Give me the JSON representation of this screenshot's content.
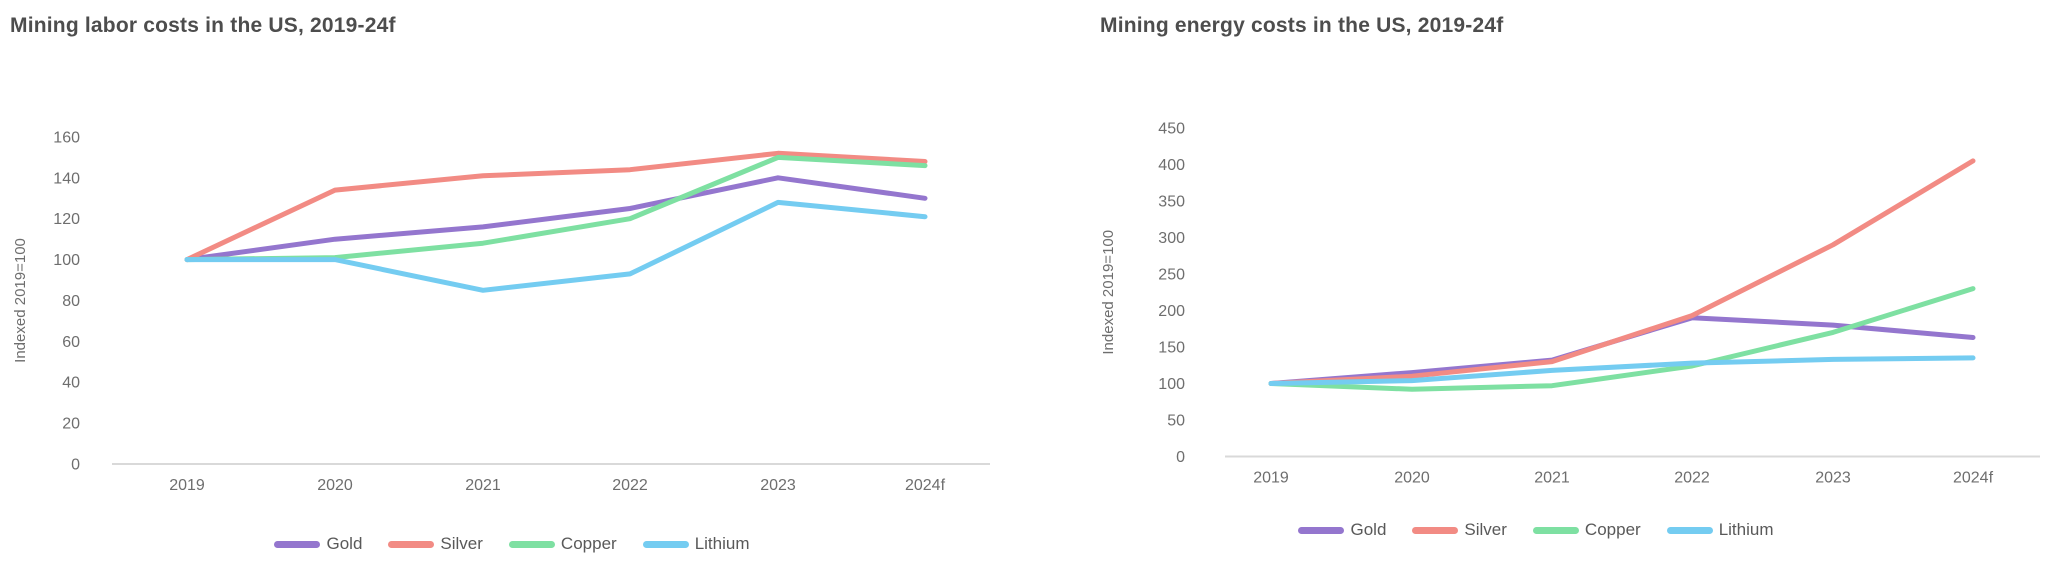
{
  "legend_labels": [
    "Gold",
    "Silver",
    "Copper",
    "Lithium"
  ],
  "colors": {
    "gold": "#9476ce",
    "silver": "#f28b84",
    "copper": "#7ee0a2",
    "lithium": "#74ccf1",
    "axis_line": "#d9d9d9",
    "tick_text": "#6e6e6e",
    "title_text": "#4d4d4d",
    "legend_text": "#595959"
  },
  "chart_data": [
    {
      "type": "line",
      "title": "Mining labor costs in the US, 2019-24f",
      "xlabel": "",
      "ylabel": "Indexed 2019=100",
      "categories": [
        "2019",
        "2020",
        "2021",
        "2022",
        "2023",
        "2024f"
      ],
      "series": [
        {
          "name": "Gold",
          "color": "#9476ce",
          "values": [
            100,
            110,
            116,
            125,
            140,
            130
          ]
        },
        {
          "name": "Silver",
          "color": "#f28b84",
          "values": [
            100,
            134,
            141,
            144,
            152,
            148
          ]
        },
        {
          "name": "Copper",
          "color": "#7ee0a2",
          "values": [
            100,
            101,
            108,
            120,
            150,
            146
          ]
        },
        {
          "name": "Lithium",
          "color": "#74ccf1",
          "values": [
            100,
            100,
            85,
            93,
            128,
            121
          ]
        }
      ],
      "ylim": [
        0,
        160
      ],
      "y_ticks": [
        0,
        20,
        40,
        60,
        80,
        100,
        120,
        140,
        160
      ],
      "grid": false,
      "legend_position": "bottom"
    },
    {
      "type": "line",
      "title": "Mining energy costs in the US, 2019-24f",
      "xlabel": "",
      "ylabel": "Indexed 2019=100",
      "categories": [
        "2019",
        "2020",
        "2021",
        "2022",
        "2023",
        "2024f"
      ],
      "series": [
        {
          "name": "Gold",
          "color": "#9476ce",
          "values": [
            100,
            115,
            132,
            190,
            180,
            163
          ]
        },
        {
          "name": "Silver",
          "color": "#f28b84",
          "values": [
            100,
            110,
            130,
            193,
            290,
            405
          ]
        },
        {
          "name": "Copper",
          "color": "#7ee0a2",
          "values": [
            100,
            92,
            97,
            124,
            170,
            230
          ]
        },
        {
          "name": "Lithium",
          "color": "#74ccf1",
          "values": [
            100,
            104,
            118,
            128,
            133,
            135
          ]
        }
      ],
      "ylim": [
        0,
        450
      ],
      "y_ticks": [
        0,
        50,
        100,
        150,
        200,
        250,
        300,
        350,
        400,
        450
      ],
      "grid": false,
      "legend_position": "bottom"
    }
  ]
}
